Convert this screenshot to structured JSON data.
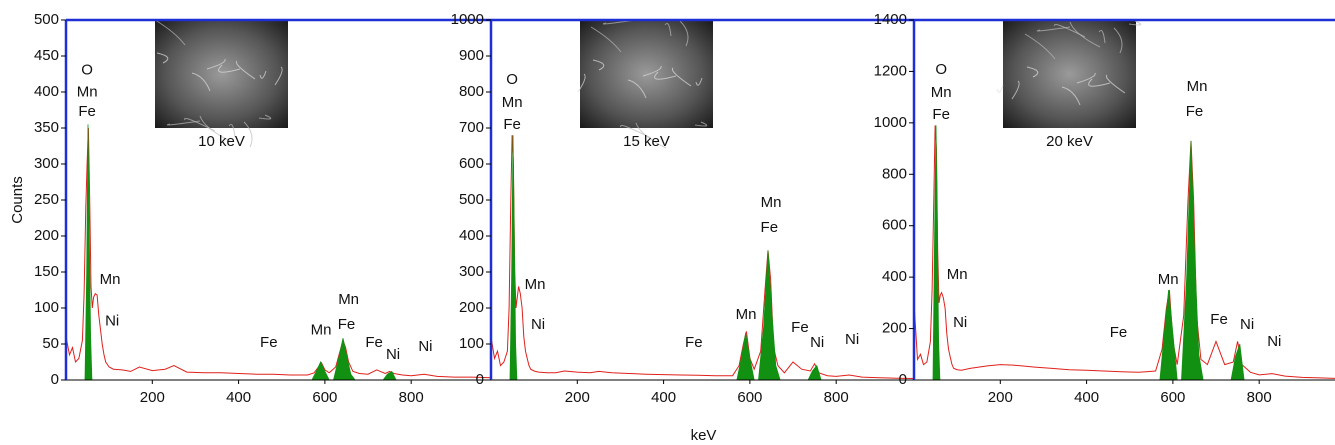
{
  "chart_data": [
    {
      "type": "line",
      "ylabel": "Counts",
      "inset_caption": "10 keV",
      "xlim": [
        0,
        985
      ],
      "xticks": [
        200,
        400,
        600,
        800
      ],
      "ylim": [
        0,
        500
      ],
      "yticks": [
        0,
        50,
        100,
        150,
        200,
        250,
        300,
        350,
        400,
        450,
        500
      ],
      "series": [
        {
          "type": "line",
          "color": "#e0201b",
          "x": [
            0,
            8,
            15,
            22,
            30,
            38,
            42,
            46,
            49,
            52,
            55,
            58,
            61,
            64,
            68,
            72,
            76,
            80,
            84,
            88,
            92,
            100,
            110,
            130,
            150,
            170,
            200,
            230,
            250,
            280,
            320,
            360,
            400,
            440,
            480,
            520,
            560,
            575,
            585,
            592,
            600,
            610,
            625,
            635,
            642,
            648,
            655,
            665,
            680,
            700,
            720,
            740,
            750,
            760,
            780,
            800,
            830,
            860,
            900,
            940,
            985
          ],
          "values": [
            60,
            35,
            45,
            25,
            30,
            55,
            120,
            240,
            300,
            350,
            250,
            130,
            100,
            115,
            120,
            118,
            90,
            70,
            50,
            35,
            25,
            18,
            15,
            14,
            12,
            18,
            13,
            15,
            20,
            11,
            10,
            10,
            9,
            8,
            8,
            7,
            7,
            10,
            18,
            24,
            14,
            10,
            18,
            40,
            55,
            45,
            25,
            12,
            9,
            8,
            14,
            9,
            12,
            9,
            7,
            6,
            8,
            5,
            4,
            4,
            3
          ]
        },
        {
          "type": "area",
          "color": "#129012",
          "x": [
            44,
            48,
            51,
            54,
            57,
            60,
            65,
            570,
            580,
            590,
            600,
            610,
            615,
            620,
            632,
            642,
            650,
            660,
            670,
            675,
            735,
            745,
            755,
            765
          ],
          "values": [
            0,
            150,
            355,
            200,
            60,
            0,
            null,
            0,
            12,
            25,
            12,
            0,
            null,
            0,
            30,
            58,
            35,
            8,
            0,
            null,
            0,
            8,
            12,
            0
          ]
        }
      ],
      "annotations": [
        {
          "text": "O",
          "x": 49,
          "y": 430
        },
        {
          "text": "Mn",
          "x": 49,
          "y": 399
        },
        {
          "text": "Fe",
          "x": 49,
          "y": 372
        },
        {
          "text": "Mn",
          "x": 102,
          "y": 139
        },
        {
          "text": "Ni",
          "x": 107,
          "y": 81
        },
        {
          "text": "Fe",
          "x": 470,
          "y": 51
        },
        {
          "text": "Mn",
          "x": 591,
          "y": 69
        },
        {
          "text": "Mn",
          "x": 655,
          "y": 111
        },
        {
          "text": "Fe",
          "x": 650,
          "y": 76
        },
        {
          "text": "Fe",
          "x": 714,
          "y": 51
        },
        {
          "text": "Ni",
          "x": 758,
          "y": 35
        },
        {
          "text": "Ni",
          "x": 833,
          "y": 46
        }
      ]
    },
    {
      "type": "line",
      "xlabel": "keV",
      "inset_caption": "15 keV",
      "xlim": [
        0,
        985
      ],
      "xticks": [
        200,
        400,
        600,
        800
      ],
      "ylim": [
        0,
        1000
      ],
      "yticks": [
        0,
        100,
        200,
        300,
        400,
        500,
        600,
        700,
        800,
        900,
        1000
      ],
      "series": [
        {
          "type": "line",
          "color": "#e0201b",
          "x": [
            0,
            8,
            15,
            22,
            30,
            38,
            42,
            46,
            49,
            52,
            55,
            58,
            61,
            64,
            68,
            72,
            76,
            80,
            84,
            88,
            92,
            100,
            110,
            130,
            150,
            170,
            200,
            230,
            250,
            280,
            320,
            360,
            400,
            440,
            480,
            520,
            560,
            575,
            585,
            592,
            600,
            610,
            625,
            635,
            642,
            648,
            655,
            665,
            680,
            700,
            720,
            740,
            750,
            760,
            780,
            800,
            830,
            860,
            900,
            940,
            985
          ],
          "values": [
            120,
            60,
            80,
            40,
            50,
            80,
            200,
            500,
            680,
            600,
            300,
            200,
            230,
            260,
            240,
            200,
            120,
            80,
            60,
            40,
            30,
            25,
            22,
            20,
            20,
            25,
            22,
            20,
            24,
            20,
            18,
            16,
            15,
            14,
            13,
            12,
            12,
            40,
            100,
            135,
            60,
            30,
            80,
            250,
            360,
            280,
            90,
            40,
            20,
            50,
            30,
            25,
            45,
            20,
            12,
            10,
            14,
            8,
            6,
            5,
            4
          ]
        },
        {
          "type": "area",
          "color": "#129012",
          "x": [
            44,
            48,
            51,
            54,
            57,
            60,
            65,
            570,
            580,
            590,
            600,
            610,
            615,
            620,
            632,
            642,
            650,
            660,
            670,
            675,
            735,
            745,
            755,
            765
          ],
          "values": [
            0,
            300,
            680,
            400,
            100,
            0,
            null,
            0,
            60,
            130,
            60,
            0,
            null,
            0,
            150,
            360,
            200,
            40,
            0,
            null,
            0,
            25,
            40,
            0
          ]
        }
      ],
      "annotations": [
        {
          "text": "O",
          "x": 49,
          "y": 833
        },
        {
          "text": "Mn",
          "x": 49,
          "y": 769
        },
        {
          "text": "Fe",
          "x": 49,
          "y": 708
        },
        {
          "text": "Mn",
          "x": 102,
          "y": 264
        },
        {
          "text": "Ni",
          "x": 109,
          "y": 153
        },
        {
          "text": "Fe",
          "x": 470,
          "y": 103
        },
        {
          "text": "Mn",
          "x": 591,
          "y": 181
        },
        {
          "text": "Mn",
          "x": 649,
          "y": 492
        },
        {
          "text": "Fe",
          "x": 645,
          "y": 422
        },
        {
          "text": "Fe",
          "x": 716,
          "y": 144
        },
        {
          "text": "Ni",
          "x": 756,
          "y": 103
        },
        {
          "text": "Ni",
          "x": 837,
          "y": 111
        }
      ]
    },
    {
      "type": "line",
      "inset_caption": "20 keV",
      "xlim": [
        0,
        985
      ],
      "xticks": [
        200,
        400,
        600,
        800
      ],
      "ylim": [
        0,
        1400
      ],
      "yticks": [
        0,
        200,
        400,
        600,
        800,
        1000,
        1200,
        1400
      ],
      "series": [
        {
          "type": "line",
          "color": "#e0201b",
          "x": [
            0,
            8,
            15,
            22,
            30,
            38,
            42,
            46,
            49,
            52,
            55,
            58,
            61,
            64,
            68,
            72,
            76,
            80,
            84,
            88,
            92,
            100,
            110,
            130,
            150,
            170,
            200,
            230,
            250,
            280,
            320,
            360,
            400,
            440,
            480,
            520,
            560,
            575,
            585,
            592,
            600,
            610,
            625,
            635,
            642,
            648,
            655,
            665,
            680,
            700,
            720,
            740,
            750,
            760,
            780,
            800,
            830,
            860,
            900,
            940,
            985
          ],
          "values": [
            300,
            80,
            100,
            60,
            70,
            150,
            350,
            700,
            990,
            900,
            500,
            300,
            330,
            340,
            320,
            280,
            180,
            120,
            90,
            60,
            45,
            40,
            38,
            45,
            50,
            55,
            60,
            58,
            55,
            50,
            45,
            40,
            38,
            35,
            32,
            30,
            35,
            120,
            280,
            350,
            150,
            60,
            250,
            700,
            930,
            700,
            250,
            80,
            60,
            150,
            60,
            70,
            150,
            60,
            30,
            20,
            25,
            15,
            10,
            8,
            6
          ]
        },
        {
          "type": "area",
          "color": "#129012",
          "x": [
            44,
            48,
            51,
            54,
            57,
            60,
            65,
            570,
            580,
            590,
            600,
            610,
            615,
            620,
            632,
            642,
            650,
            660,
            670,
            675,
            735,
            745,
            755,
            765
          ],
          "values": [
            0,
            600,
            990,
            600,
            150,
            0,
            null,
            0,
            180,
            350,
            180,
            0,
            null,
            0,
            400,
            930,
            500,
            100,
            0,
            null,
            0,
            90,
            140,
            0
          ]
        }
      ],
      "annotations": [
        {
          "text": "O",
          "x": 63,
          "y": 1206
        },
        {
          "text": "Mn",
          "x": 63,
          "y": 1116
        },
        {
          "text": "Fe",
          "x": 63,
          "y": 1031
        },
        {
          "text": "Mn",
          "x": 100,
          "y": 408
        },
        {
          "text": "Ni",
          "x": 107,
          "y": 222
        },
        {
          "text": "Fe",
          "x": 474,
          "y": 183
        },
        {
          "text": "Mn",
          "x": 589,
          "y": 389
        },
        {
          "text": "Mn",
          "x": 656,
          "y": 1140
        },
        {
          "text": "Fe",
          "x": 650,
          "y": 1042
        },
        {
          "text": "Fe",
          "x": 707,
          "y": 233
        },
        {
          "text": "Ni",
          "x": 772,
          "y": 214
        },
        {
          "text": "Ni",
          "x": 835,
          "y": 148
        }
      ]
    }
  ]
}
